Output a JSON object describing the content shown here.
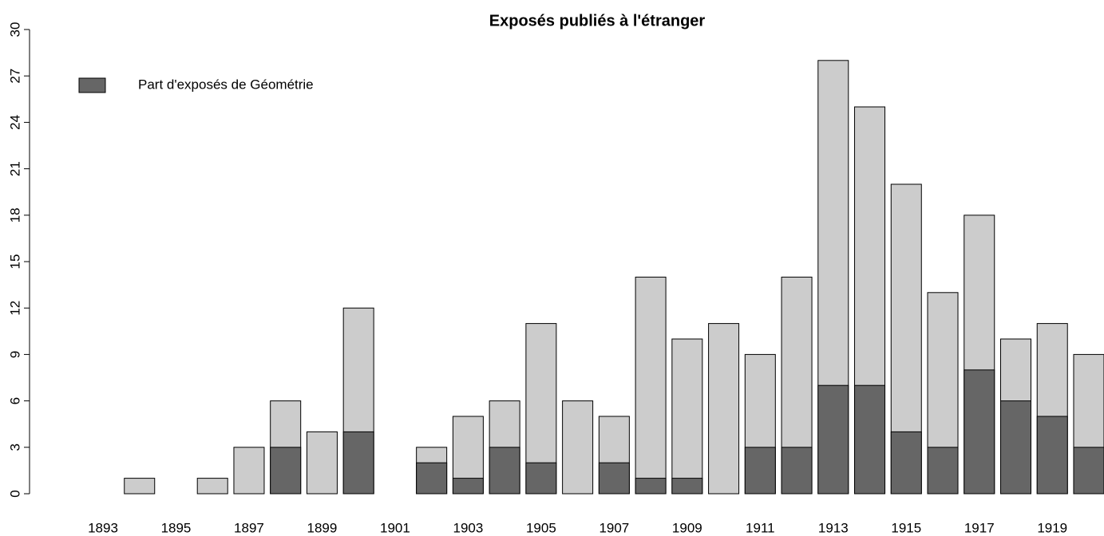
{
  "chart_data": {
    "type": "bar",
    "title": "Exposés publiés à l'étranger",
    "categories": [
      "1893",
      null,
      "1895",
      null,
      "1897",
      null,
      "1899",
      null,
      "1901",
      null,
      "1903",
      null,
      "1905",
      null,
      "1907",
      null,
      "1909",
      null,
      "1911",
      null,
      "1913",
      null,
      "1915",
      null,
      "1917",
      null,
      "1919",
      null
    ],
    "series": [
      {
        "color": "#cccccc",
        "values": [
          0,
          1,
          0,
          1,
          3,
          6,
          4,
          12,
          0,
          3,
          5,
          6,
          11,
          6,
          5,
          14,
          10,
          11,
          9,
          14,
          28,
          25,
          20,
          13,
          18,
          10,
          11,
          9
        ]
      },
      {
        "name": "Part d'exposés de Géométrie",
        "color": "#666666",
        "values": [
          0,
          0,
          0,
          0,
          0,
          3,
          0,
          4,
          0,
          2,
          1,
          3,
          2,
          0,
          2,
          1,
          1,
          0,
          3,
          3,
          7,
          7,
          4,
          3,
          8,
          6,
          5,
          3
        ]
      }
    ],
    "ylim": [
      0,
      30
    ],
    "yticks": [
      0,
      3,
      6,
      9,
      12,
      15,
      18,
      21,
      24,
      27,
      30
    ],
    "legend": "top-left"
  }
}
